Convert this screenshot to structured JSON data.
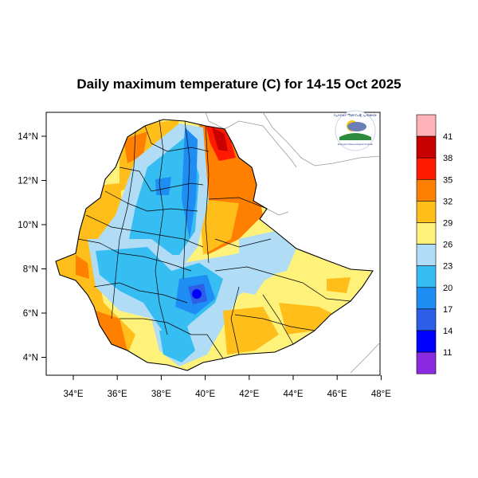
{
  "title": "Daily maximum temperature (C) for 14-15 Oct 2025",
  "map": {
    "region": "Ethiopia",
    "variable": "Daily maximum temperature (C)",
    "lon_ticks": [
      "34°E",
      "36°E",
      "38°E",
      "40°E",
      "42°E",
      "44°E",
      "46°E",
      "48°E"
    ],
    "lat_ticks": [
      "14°N",
      "12°N",
      "10°N",
      "8°N",
      "6°N",
      "4°N"
    ],
    "lon_range": [
      33,
      48.2
    ],
    "lat_range": [
      3.2,
      15
    ]
  },
  "colorbar": {
    "labels": [
      "41",
      "38",
      "35",
      "32",
      "29",
      "26",
      "23",
      "20",
      "17",
      "14",
      "11"
    ],
    "colors": [
      "#ffb3b8",
      "#c80000",
      "#ff1a00",
      "#ff8000",
      "#ffbe1a",
      "#fff27a",
      "#b0dcf5",
      "#36bdf2",
      "#1e8ef5",
      "#2d5ee8",
      "#0000ff",
      "#8a2be2"
    ]
  },
  "logo": {
    "top_text": "የኢትዮጵያ ሜቲዮሮሎጂ ኢንስቲትዩት",
    "bottom_text": "Ethiopian Meteorological Institute",
    "sun_color": "#f5c518",
    "cloud_color": "#6a7fb5",
    "land_color": "#2e8b3e"
  }
}
